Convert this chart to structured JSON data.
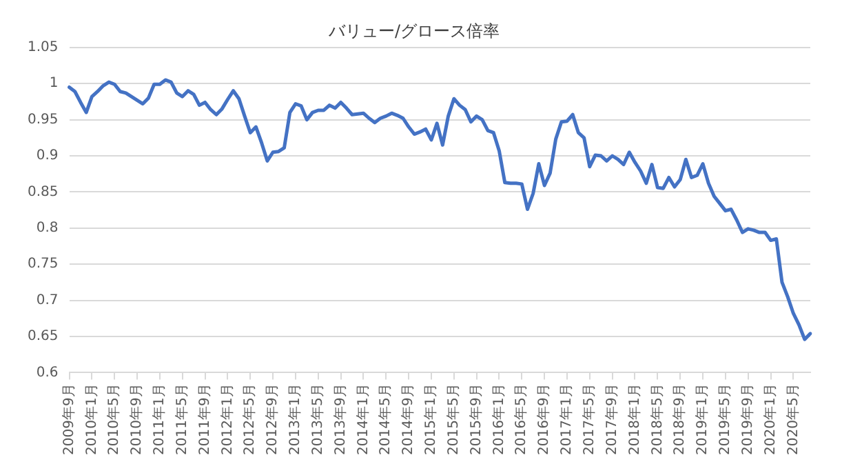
{
  "chart_data": {
    "type": "line",
    "title": "バリュー/グロース倍率",
    "categories": [
      "2009年9月",
      null,
      null,
      null,
      "2010年1月",
      null,
      null,
      null,
      "2010年5月",
      null,
      null,
      null,
      "2010年9月",
      null,
      null,
      null,
      "2011年1月",
      null,
      null,
      null,
      "2011年5月",
      null,
      null,
      null,
      "2011年9月",
      null,
      null,
      null,
      "2012年1月",
      null,
      null,
      null,
      "2012年5月",
      null,
      null,
      null,
      "2012年9月",
      null,
      null,
      null,
      "2013年1月",
      null,
      null,
      null,
      "2013年5月",
      null,
      null,
      null,
      "2013年9月",
      null,
      null,
      null,
      "2014年1月",
      null,
      null,
      null,
      "2014年5月",
      null,
      null,
      null,
      "2014年9月",
      null,
      null,
      null,
      "2015年1月",
      null,
      null,
      null,
      "2015年5月",
      null,
      null,
      null,
      "2015年9月",
      null,
      null,
      null,
      "2016年1月",
      null,
      null,
      null,
      "2016年5月",
      null,
      null,
      null,
      "2016年9月",
      null,
      null,
      null,
      "2017年1月",
      null,
      null,
      null,
      "2017年5月",
      null,
      null,
      null,
      "2017年9月",
      null,
      null,
      null,
      "2018年1月",
      null,
      null,
      null,
      "2018年5月",
      null,
      null,
      null,
      "2018年9月",
      null,
      null,
      null,
      "2019年1月",
      null,
      null,
      null,
      "2019年5月",
      null,
      null,
      null,
      "2019年9月",
      null,
      null,
      null,
      "2020年1月",
      null,
      null,
      null,
      "2020年5月",
      null,
      null,
      null
    ],
    "series": [
      {
        "color": "#4472c4",
        "values": [
          0.995,
          0.989,
          0.974,
          0.96,
          0.982,
          0.989,
          0.997,
          1.002,
          0.999,
          0.989,
          0.987,
          0.982,
          0.977,
          0.972,
          0.98,
          0.999,
          0.999,
          1.005,
          1.002,
          0.987,
          0.982,
          0.99,
          0.985,
          0.97,
          0.974,
          0.964,
          0.957,
          0.965,
          0.978,
          0.99,
          0.979,
          0.955,
          0.932,
          0.94,
          0.918,
          0.893,
          0.905,
          0.906,
          0.911,
          0.96,
          0.972,
          0.969,
          0.95,
          0.96,
          0.963,
          0.963,
          0.97,
          0.966,
          0.974,
          0.966,
          0.957,
          0.958,
          0.959,
          0.952,
          0.946,
          0.952,
          0.955,
          0.959,
          0.956,
          0.952,
          0.94,
          0.93,
          0.933,
          0.937,
          0.922,
          0.945,
          0.915,
          0.955,
          0.979,
          0.97,
          0.964,
          0.947,
          0.955,
          0.95,
          0.935,
          0.932,
          0.907,
          0.863,
          0.862,
          0.862,
          0.861,
          0.826,
          0.848,
          0.889,
          0.859,
          0.876,
          0.923,
          0.947,
          0.948,
          0.957,
          0.932,
          0.925,
          0.885,
          0.901,
          0.9,
          0.893,
          0.9,
          0.895,
          0.888,
          0.905,
          0.891,
          0.879,
          0.862,
          0.888,
          0.856,
          0.855,
          0.87,
          0.857,
          0.867,
          0.895,
          0.87,
          0.873,
          0.889,
          0.862,
          0.844,
          0.834,
          0.824,
          0.826,
          0.811,
          0.794,
          0.799,
          0.797,
          0.794,
          0.794,
          0.783,
          0.785,
          0.725,
          0.705,
          0.682,
          0.666,
          0.646,
          0.654
        ]
      }
    ],
    "ylim": [
      0.6,
      1.05
    ],
    "yticks": [
      0.6,
      0.65,
      0.7,
      0.75,
      0.8,
      0.85,
      0.9,
      0.95,
      1,
      1.05
    ],
    "grid": "y",
    "legend": false,
    "marker": "none",
    "line_style": "solid"
  }
}
